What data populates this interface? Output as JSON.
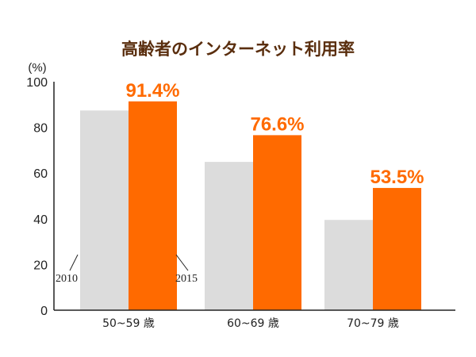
{
  "colors": {
    "series_2010": "#dcdcdc",
    "series_2015": "#ff6a00",
    "title": "#5a2e0e",
    "axis": "#222222"
  },
  "chart_data": {
    "type": "bar",
    "title": "高齢者のインターネット利用率",
    "ylabel": "(%)",
    "xlabel": "",
    "ylim": [
      0,
      100
    ],
    "yticks": [
      "0",
      "20",
      "40",
      "60",
      "80",
      "100"
    ],
    "ytick_values": [
      0,
      20,
      40,
      60,
      80,
      100
    ],
    "categories": [
      "50~59 歳",
      "60~69 歳",
      "70~79 歳"
    ],
    "series": [
      {
        "name": "2010",
        "values": [
          87.4,
          64.9,
          39.5
        ],
        "color": "#dcdcdc",
        "show_labels": false
      },
      {
        "name": "2015",
        "values": [
          91.4,
          76.6,
          53.5
        ],
        "color": "#ff6a00",
        "show_labels": true
      }
    ],
    "data_labels": [
      "91.4%",
      "76.6%",
      "53.5%"
    ],
    "annotations": [
      "2010",
      "2015"
    ],
    "grid": false,
    "legend": "none"
  }
}
